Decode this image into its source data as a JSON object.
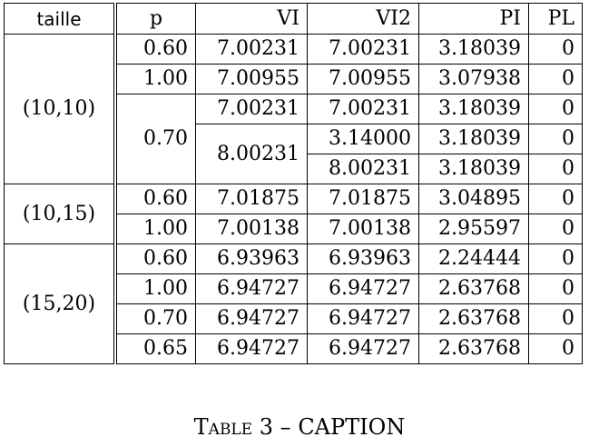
{
  "table": {
    "headers": [
      "taille",
      "p",
      "VI",
      "VI2",
      "PI",
      "PL"
    ],
    "groups": [
      {
        "taille": "(10,10)",
        "rows": [
          {
            "p": "0.60",
            "vi": "7.00231",
            "vi2": "7.00231",
            "pi": "3.18039",
            "pl": "0"
          },
          {
            "p": "1.00",
            "vi": "7.00955",
            "vi2": "7.00955",
            "pi": "3.07938",
            "pl": "0"
          },
          {
            "p": "0.70",
            "vi": "7.00231",
            "vi2": "7.00231",
            "pi": "3.18039",
            "pl": "0"
          },
          {
            "p": "",
            "vi": "8.00231",
            "vi2": "3.14000",
            "pi": "3.18039",
            "pl": "0"
          },
          {
            "p": "",
            "vi": "",
            "vi2": "8.00231",
            "pi": "3.18039",
            "pl": "0"
          }
        ]
      },
      {
        "taille": "(10,15)",
        "rows": [
          {
            "p": "0.60",
            "vi": "7.01875",
            "vi2": "7.01875",
            "pi": "3.04895",
            "pl": "0"
          },
          {
            "p": "1.00",
            "vi": "7.00138",
            "vi2": "7.00138",
            "pi": "2.95597",
            "pl": "0"
          }
        ]
      },
      {
        "taille": "(15,20)",
        "rows": [
          {
            "p": "0.60",
            "vi": "6.93963",
            "vi2": "6.93963",
            "pi": "2.24444",
            "pl": "0"
          },
          {
            "p": "1.00",
            "vi": "6.94727",
            "vi2": "6.94727",
            "pi": "2.63768",
            "pl": "0"
          },
          {
            "p": "0.70",
            "vi": "6.94727",
            "vi2": "6.94727",
            "pi": "2.63768",
            "pl": "0"
          },
          {
            "p": "0.65",
            "vi": "6.94727",
            "vi2": "6.94727",
            "pi": "2.63768",
            "pl": "0"
          }
        ]
      }
    ]
  },
  "caption": {
    "label": "Table 3",
    "separator": "–",
    "text": "CAPTION"
  }
}
